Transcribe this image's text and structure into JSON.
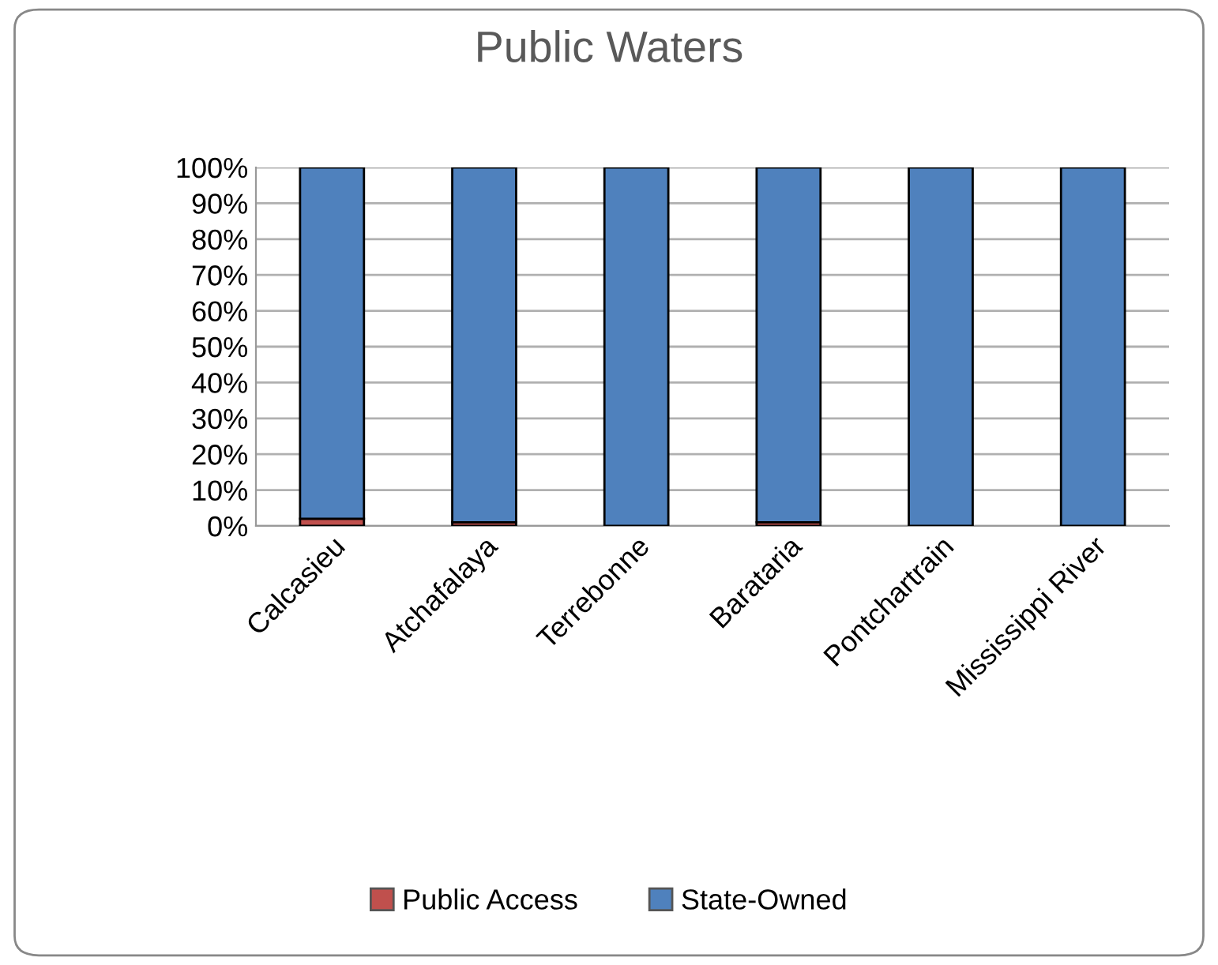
{
  "chart_data": {
    "type": "bar",
    "title": "Public Waters",
    "stacked": true,
    "categories": [
      "Calcasieu",
      "Atchafalaya",
      "Terrebonne",
      "Barataria",
      "Pontchartrain",
      "Mississippi River"
    ],
    "series": [
      {
        "name": "Public Access",
        "color": "#c0504d",
        "values": [
          2,
          1,
          0,
          1,
          0,
          0
        ]
      },
      {
        "name": "State-Owned",
        "color": "#4f81bd",
        "values": [
          98,
          99,
          100,
          99,
          100,
          100
        ]
      }
    ],
    "ylim": [
      0,
      100
    ],
    "yticks": [
      {
        "value": 0,
        "label": "0%"
      },
      {
        "value": 10,
        "label": "10%"
      },
      {
        "value": 20,
        "label": "20%"
      },
      {
        "value": 30,
        "label": "30%"
      },
      {
        "value": 40,
        "label": "40%"
      },
      {
        "value": 50,
        "label": "50%"
      },
      {
        "value": 60,
        "label": "60%"
      },
      {
        "value": 70,
        "label": "70%"
      },
      {
        "value": 80,
        "label": "80%"
      },
      {
        "value": 90,
        "label": "90%"
      },
      {
        "value": 100,
        "label": "100%"
      }
    ],
    "grid": "y",
    "legend": "bottom"
  }
}
